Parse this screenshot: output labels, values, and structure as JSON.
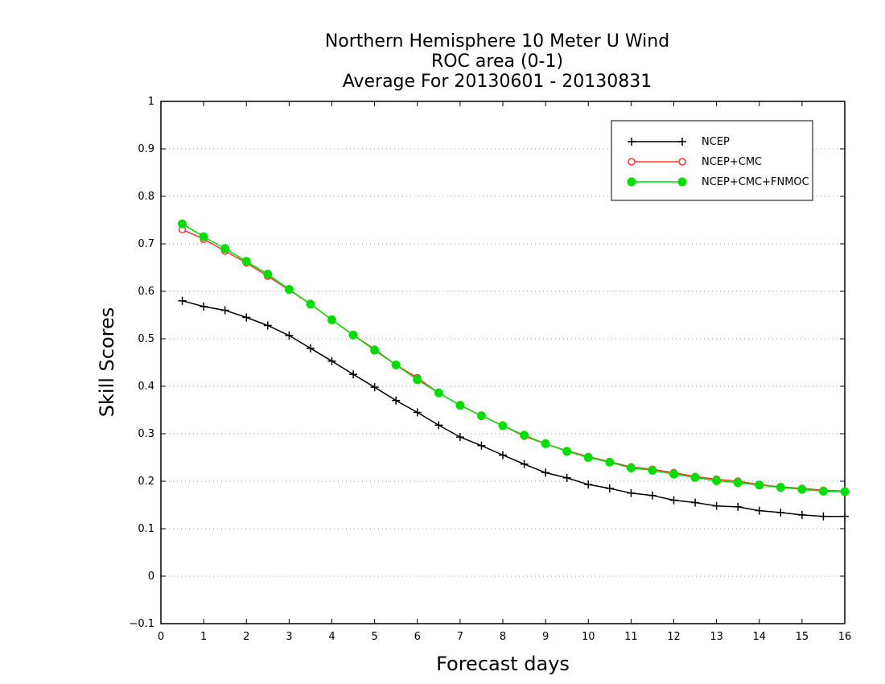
{
  "chart_data": {
    "type": "line",
    "title_lines": [
      "Northern Hemisphere 10 Meter U Wind",
      "ROC area (0-1)",
      "Average For 20130601 - 20130831"
    ],
    "xlabel": "Forecast days",
    "ylabel": "Skill Scores",
    "xlim": [
      0,
      16
    ],
    "ylim": [
      -0.1,
      1
    ],
    "x_ticks": [
      "0",
      "1",
      "2",
      "3",
      "4",
      "5",
      "6",
      "7",
      "8",
      "9",
      "10",
      "11",
      "12",
      "13",
      "14",
      "15",
      "16"
    ],
    "y_ticks": [
      "−0.1",
      "0",
      "0.1",
      "0.2",
      "0.3",
      "0.4",
      "0.5",
      "0.6",
      "0.7",
      "0.8",
      "0.9",
      "1"
    ],
    "grid": "horizontal dotted",
    "legend_position": "top-right",
    "x": [
      0.5,
      1,
      1.5,
      2,
      2.5,
      3,
      3.5,
      4,
      4.5,
      5,
      5.5,
      6,
      6.5,
      7,
      7.5,
      8,
      8.5,
      9,
      9.5,
      10,
      10.5,
      11,
      11.5,
      12,
      12.5,
      13,
      13.5,
      14,
      14.5,
      15,
      15.5,
      16
    ],
    "series": [
      {
        "name": "NCEP",
        "color": "#000000",
        "marker": "plus",
        "values": [
          0.58,
          0.568,
          0.56,
          0.545,
          0.528,
          0.507,
          0.48,
          0.453,
          0.425,
          0.398,
          0.37,
          0.345,
          0.318,
          0.293,
          0.275,
          0.255,
          0.236,
          0.218,
          0.207,
          0.193,
          0.185,
          0.175,
          0.17,
          0.16,
          0.155,
          0.148,
          0.146,
          0.138,
          0.134,
          0.129,
          0.126,
          0.126
        ]
      },
      {
        "name": "NCEP+CMC",
        "color": "#ff3333",
        "marker": "open-circle",
        "values": [
          0.73,
          0.71,
          0.685,
          0.66,
          0.632,
          0.603,
          0.573,
          0.54,
          0.508,
          0.478,
          0.445,
          0.418,
          0.386,
          0.36,
          0.338,
          0.317,
          0.295,
          0.279,
          0.264,
          0.252,
          0.241,
          0.23,
          0.225,
          0.218,
          0.21,
          0.204,
          0.2,
          0.193,
          0.188,
          0.185,
          0.181,
          0.179
        ]
      },
      {
        "name": "NCEP+CMC+FNMOC",
        "color": "#00dd00",
        "marker": "filled-circle",
        "values": [
          0.742,
          0.715,
          0.69,
          0.663,
          0.636,
          0.604,
          0.573,
          0.54,
          0.508,
          0.476,
          0.445,
          0.414,
          0.386,
          0.36,
          0.338,
          0.317,
          0.297,
          0.279,
          0.263,
          0.25,
          0.24,
          0.228,
          0.223,
          0.215,
          0.208,
          0.201,
          0.197,
          0.192,
          0.187,
          0.183,
          0.179,
          0.178
        ]
      }
    ]
  }
}
